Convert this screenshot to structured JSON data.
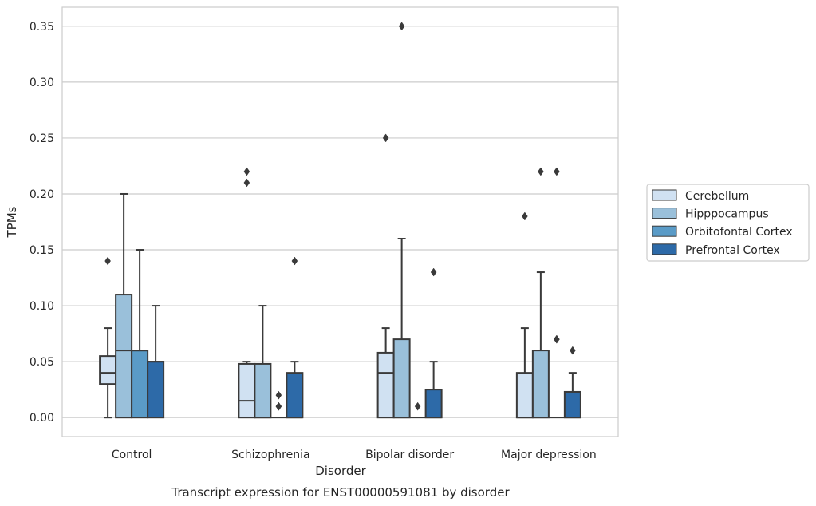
{
  "chart_data": {
    "type": "box",
    "title": "",
    "caption": "Transcript expression for ENST00000591081 by disorder",
    "xlabel": "Disorder",
    "ylabel": "TPMs",
    "ylim": [
      -0.017,
      0.367
    ],
    "yticks": [
      0.0,
      0.05,
      0.1,
      0.15,
      0.2,
      0.25,
      0.3,
      0.35
    ],
    "ytick_labels": [
      "0.00",
      "0.05",
      "0.10",
      "0.15",
      "0.20",
      "0.25",
      "0.30",
      "0.35"
    ],
    "grid": "horizontal",
    "legend_position": "right",
    "categories": [
      "Control",
      "Schizophrenia",
      "Bipolar disorder",
      "Major depression"
    ],
    "series": [
      {
        "name": "Cerebellum",
        "color": "#d0e1f2",
        "boxes": [
          {
            "whislo": 0.0,
            "q1": 0.03,
            "med": 0.04,
            "q3": 0.055,
            "whishi": 0.08,
            "fliers": [
              0.14
            ]
          },
          {
            "whislo": 0.0,
            "q1": 0.0,
            "med": 0.015,
            "q3": 0.048,
            "whishi": 0.05,
            "fliers": [
              0.21,
              0.22
            ]
          },
          {
            "whislo": 0.0,
            "q1": 0.0,
            "med": 0.04,
            "q3": 0.058,
            "whishi": 0.08,
            "fliers": [
              0.25
            ]
          },
          {
            "whislo": 0.0,
            "q1": 0.0,
            "med": 0.0,
            "q3": 0.04,
            "whishi": 0.08,
            "fliers": [
              0.18
            ]
          }
        ]
      },
      {
        "name": "Hipppocampus",
        "color": "#9ac0da",
        "boxes": [
          {
            "whislo": 0.0,
            "q1": 0.0,
            "med": 0.06,
            "q3": 0.11,
            "whishi": 0.2,
            "fliers": []
          },
          {
            "whislo": 0.0,
            "q1": 0.0,
            "med": 0.0,
            "q3": 0.048,
            "whishi": 0.1,
            "fliers": []
          },
          {
            "whislo": 0.0,
            "q1": 0.0,
            "med": 0.0,
            "q3": 0.07,
            "whishi": 0.16,
            "fliers": [
              0.35
            ]
          },
          {
            "whislo": 0.0,
            "q1": 0.0,
            "med": 0.0,
            "q3": 0.06,
            "whishi": 0.13,
            "fliers": [
              0.22
            ]
          }
        ]
      },
      {
        "name": "Orbitofontal Cortex",
        "color": "#5a9bc7",
        "boxes": [
          {
            "whislo": 0.0,
            "q1": 0.0,
            "med": 0.06,
            "q3": 0.06,
            "whishi": 0.15,
            "fliers": []
          },
          {
            "whislo": 0.0,
            "q1": 0.0,
            "med": 0.0,
            "q3": 0.0,
            "whishi": 0.0,
            "fliers": [
              0.01,
              0.01,
              0.02
            ]
          },
          {
            "whislo": 0.0,
            "q1": 0.0,
            "med": 0.0,
            "q3": 0.0,
            "whishi": 0.0,
            "fliers": [
              0.01
            ]
          },
          {
            "whislo": 0.0,
            "q1": 0.0,
            "med": 0.0,
            "q3": 0.0,
            "whishi": 0.0,
            "fliers": [
              0.07,
              0.07,
              0.22
            ]
          }
        ]
      },
      {
        "name": "Prefrontal Cortex",
        "color": "#2d6aa8",
        "boxes": [
          {
            "whislo": 0.0,
            "q1": 0.0,
            "med": 0.05,
            "q3": 0.05,
            "whishi": 0.1,
            "fliers": []
          },
          {
            "whislo": 0.0,
            "q1": 0.0,
            "med": 0.0,
            "q3": 0.04,
            "whishi": 0.05,
            "fliers": [
              0.14
            ]
          },
          {
            "whislo": 0.0,
            "q1": 0.0,
            "med": 0.0,
            "q3": 0.025,
            "whishi": 0.05,
            "fliers": [
              0.13
            ]
          },
          {
            "whislo": 0.0,
            "q1": 0.0,
            "med": 0.0,
            "q3": 0.023,
            "whishi": 0.04,
            "fliers": [
              0.06
            ]
          }
        ]
      }
    ],
    "colors": {
      "grid": "#cccccc",
      "frame": "#cccccc",
      "box_edge": "#3a3a3a",
      "legend_border": "#cccccc"
    }
  }
}
